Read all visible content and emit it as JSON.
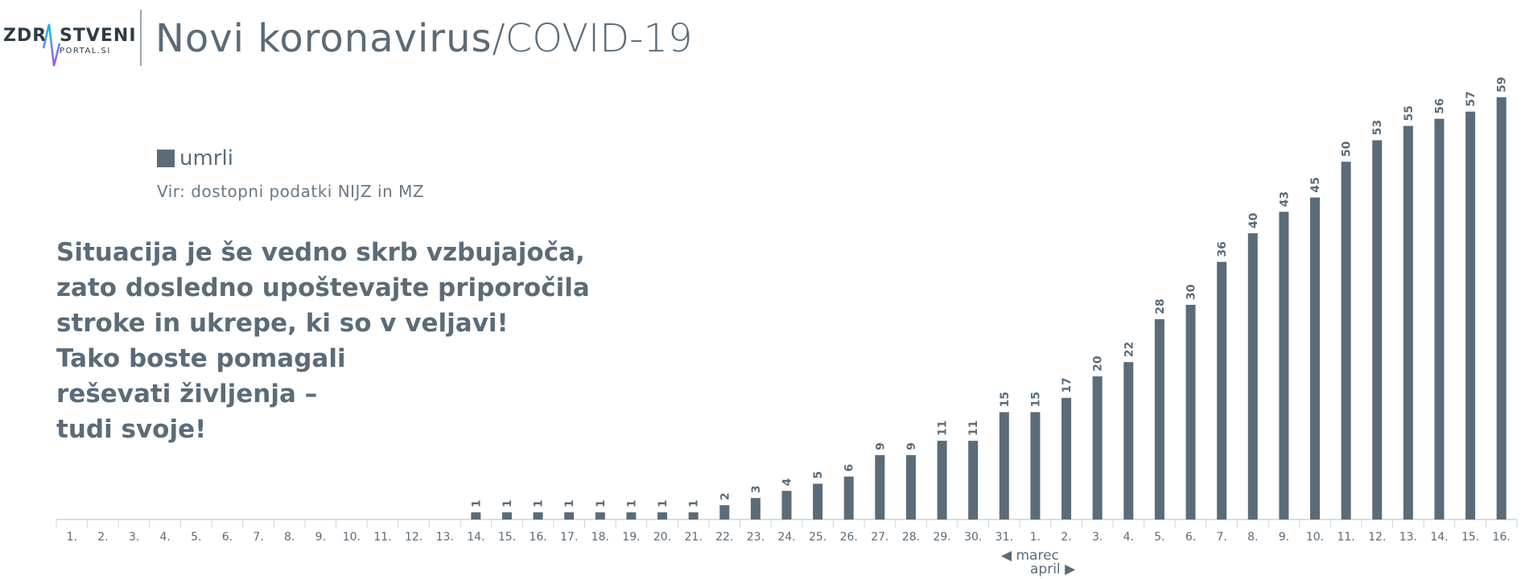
{
  "logo": {
    "part1": "ZDR",
    "part2": "STVENI",
    "part3": "PORTAL.SI"
  },
  "title": {
    "main": "Novi koronavirus",
    "suffix": "/COVID-19"
  },
  "legend": {
    "label": "umrli"
  },
  "source": "Vir: dostopni podatki NIJZ in MZ",
  "message": [
    "Situacija je še vedno skrb vzbujajoča,",
    "zato dosledno upoštevajte priporočila",
    "stroke in ukrepe, ki so v veljavi!",
    "Tako boste pomagali",
    "reševati življenja –",
    "tudi svoje!"
  ],
  "months": {
    "first": "marec",
    "second": "april"
  },
  "colors": {
    "bar": "#5b6b78",
    "text": "#5b6b78"
  },
  "chart_data": {
    "type": "bar",
    "categories": [
      "1.",
      "2.",
      "3.",
      "4.",
      "5.",
      "6.",
      "7.",
      "8.",
      "9.",
      "10.",
      "11.",
      "12.",
      "13.",
      "14.",
      "15.",
      "16.",
      "17.",
      "18.",
      "19.",
      "20.",
      "21.",
      "22.",
      "23.",
      "24.",
      "25.",
      "26.",
      "27.",
      "28.",
      "29.",
      "30.",
      "31.",
      "1.",
      "2.",
      "3.",
      "4.",
      "5.",
      "6.",
      "7.",
      "8.",
      "9.",
      "10.",
      "11.",
      "12.",
      "13.",
      "14.",
      "15.",
      "16."
    ],
    "series": [
      {
        "name": "umrli",
        "values": [
          0,
          0,
          0,
          0,
          0,
          0,
          0,
          0,
          0,
          0,
          0,
          0,
          0,
          1,
          1,
          1,
          1,
          1,
          1,
          1,
          1,
          2,
          3,
          4,
          5,
          6,
          9,
          9,
          11,
          11,
          15,
          15,
          17,
          20,
          22,
          28,
          30,
          36,
          40,
          43,
          45,
          50,
          53,
          55,
          56,
          57,
          59
        ]
      }
    ],
    "ylim": [
      0,
      60
    ],
    "grid": false,
    "legend_position": "top-left"
  }
}
